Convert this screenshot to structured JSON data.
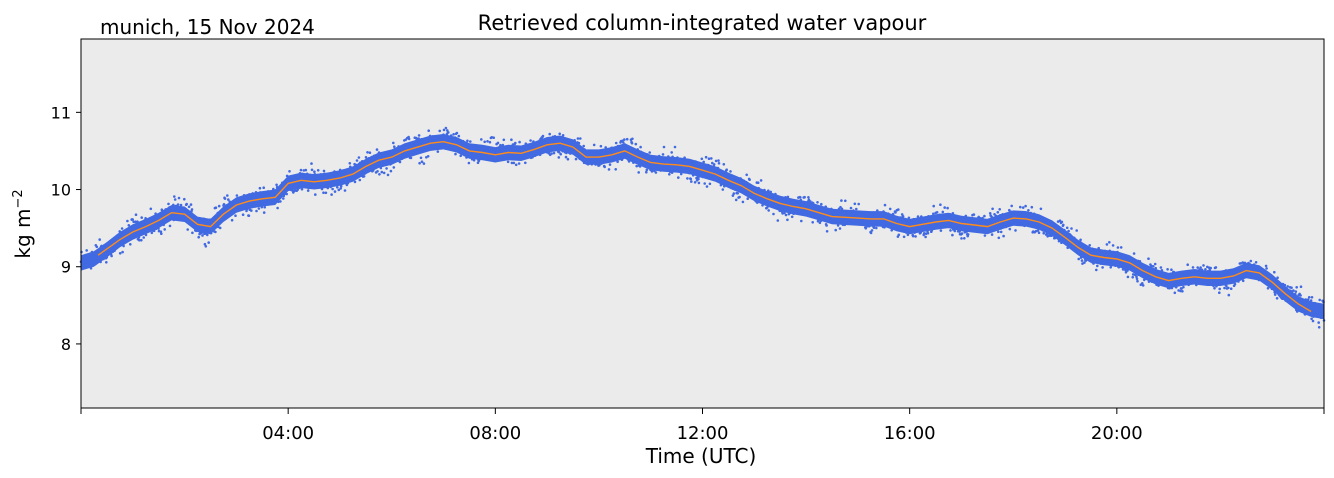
{
  "chart_data": {
    "type": "scatter",
    "title": "Retrieved column-integrated water vapour",
    "location_date": "munich, 15 Nov 2024",
    "xlabel": "Time (UTC)",
    "ylabel": "kg m",
    "ylabel_sup": "−2",
    "xlim": [
      0,
      24
    ],
    "ylim": [
      7.17,
      11.95
    ],
    "x_ticks": [
      0,
      4,
      8,
      12,
      16,
      20
    ],
    "x_tick_labels": [
      "",
      "04:00",
      "08:00",
      "12:00",
      "16:00",
      "20:00"
    ],
    "y_ticks": [
      8,
      9,
      10,
      11
    ],
    "y_tick_labels": [
      "8",
      "9",
      "10",
      "11"
    ],
    "grid": false,
    "plot_background": "#ebebeb",
    "series": [
      {
        "kind": "scatter",
        "color": "#4169e1",
        "x": [
          0.0,
          0.25,
          0.5,
          0.75,
          1.0,
          1.25,
          1.5,
          1.75,
          2.0,
          2.25,
          2.5,
          2.75,
          3.0,
          3.25,
          3.5,
          3.75,
          4.0,
          4.25,
          4.5,
          4.75,
          5.0,
          5.25,
          5.5,
          5.75,
          6.0,
          6.25,
          6.5,
          6.75,
          7.0,
          7.25,
          7.5,
          7.75,
          8.0,
          8.25,
          8.5,
          8.75,
          9.0,
          9.25,
          9.5,
          9.75,
          10.0,
          10.25,
          10.5,
          10.75,
          11.0,
          11.25,
          11.5,
          11.75,
          12.0,
          12.25,
          12.5,
          12.75,
          13.0,
          13.25,
          13.5,
          13.75,
          14.0,
          14.25,
          14.5,
          14.75,
          15.0,
          15.25,
          15.5,
          15.75,
          16.0,
          16.25,
          16.5,
          16.75,
          17.0,
          17.25,
          17.5,
          17.75,
          18.0,
          18.25,
          18.5,
          18.75,
          19.0,
          19.25,
          19.5,
          19.75,
          20.0,
          20.25,
          20.5,
          20.75,
          21.0,
          21.25,
          21.5,
          21.75,
          22.0,
          22.25,
          22.5,
          22.75,
          23.0,
          23.25,
          23.5,
          23.75,
          24.0
        ],
        "y": [
          9.05,
          9.1,
          9.22,
          9.35,
          9.45,
          9.52,
          9.6,
          9.7,
          9.68,
          9.55,
          9.52,
          9.68,
          9.8,
          9.85,
          9.88,
          9.9,
          10.08,
          10.12,
          10.1,
          10.12,
          10.15,
          10.2,
          10.3,
          10.38,
          10.42,
          10.5,
          10.55,
          10.6,
          10.62,
          10.58,
          10.5,
          10.48,
          10.45,
          10.48,
          10.47,
          10.52,
          10.58,
          10.6,
          10.55,
          10.42,
          10.42,
          10.45,
          10.5,
          10.42,
          10.35,
          10.33,
          10.32,
          10.3,
          10.25,
          10.2,
          10.12,
          10.05,
          9.95,
          9.88,
          9.82,
          9.78,
          9.75,
          9.7,
          9.65,
          9.64,
          9.63,
          9.62,
          9.62,
          9.56,
          9.52,
          9.55,
          9.58,
          9.6,
          9.56,
          9.54,
          9.52,
          9.58,
          9.63,
          9.62,
          9.58,
          9.5,
          9.38,
          9.25,
          9.15,
          9.12,
          9.1,
          9.05,
          8.95,
          8.87,
          8.82,
          8.85,
          8.87,
          8.85,
          8.85,
          8.88,
          8.95,
          8.92,
          8.8,
          8.65,
          8.52,
          8.45,
          8.42
        ]
      },
      {
        "kind": "line",
        "color": "#ff8c1a",
        "x": [
          0.33,
          0.75,
          1.0,
          1.25,
          1.5,
          1.75,
          2.0,
          2.25,
          2.5,
          2.75,
          3.0,
          3.25,
          3.5,
          3.75,
          4.0,
          4.25,
          4.5,
          4.75,
          5.0,
          5.25,
          5.5,
          5.75,
          6.0,
          6.25,
          6.5,
          6.75,
          7.0,
          7.25,
          7.5,
          7.75,
          8.0,
          8.25,
          8.5,
          8.75,
          9.0,
          9.25,
          9.5,
          9.75,
          10.0,
          10.25,
          10.5,
          10.75,
          11.0,
          11.25,
          11.5,
          11.75,
          12.0,
          12.25,
          12.5,
          12.75,
          13.0,
          13.25,
          13.5,
          13.75,
          14.0,
          14.25,
          14.5,
          14.75,
          15.0,
          15.25,
          15.5,
          15.75,
          16.0,
          16.25,
          16.5,
          16.75,
          17.0,
          17.25,
          17.5,
          17.75,
          18.0,
          18.25,
          18.5,
          18.75,
          19.0,
          19.25,
          19.5,
          19.75,
          20.0,
          20.25,
          20.5,
          20.75,
          21.0,
          21.25,
          21.5,
          21.75,
          22.0,
          22.25,
          22.5,
          22.75,
          23.0,
          23.25,
          23.5,
          23.75
        ],
        "y": [
          9.15,
          9.35,
          9.45,
          9.52,
          9.6,
          9.7,
          9.68,
          9.55,
          9.52,
          9.68,
          9.8,
          9.85,
          9.88,
          9.9,
          10.08,
          10.12,
          10.1,
          10.12,
          10.15,
          10.2,
          10.3,
          10.38,
          10.42,
          10.5,
          10.55,
          10.6,
          10.62,
          10.58,
          10.5,
          10.48,
          10.45,
          10.48,
          10.47,
          10.52,
          10.58,
          10.6,
          10.55,
          10.42,
          10.42,
          10.45,
          10.5,
          10.42,
          10.35,
          10.33,
          10.32,
          10.3,
          10.25,
          10.2,
          10.12,
          10.05,
          9.95,
          9.88,
          9.82,
          9.78,
          9.75,
          9.7,
          9.65,
          9.64,
          9.63,
          9.62,
          9.62,
          9.56,
          9.52,
          9.55,
          9.58,
          9.6,
          9.56,
          9.54,
          9.52,
          9.58,
          9.63,
          9.62,
          9.58,
          9.5,
          9.38,
          9.25,
          9.15,
          9.12,
          9.1,
          9.05,
          8.95,
          8.87,
          8.82,
          8.85,
          8.87,
          8.85,
          8.85,
          8.88,
          8.95,
          8.92,
          8.8,
          8.65,
          8.52,
          8.42
        ]
      }
    ]
  }
}
